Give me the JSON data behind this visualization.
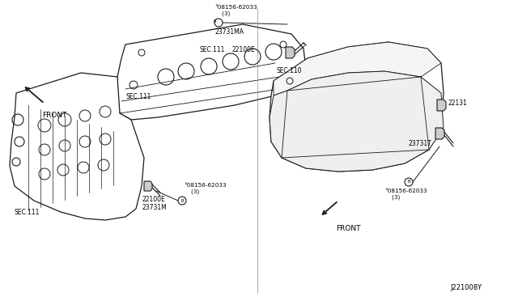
{
  "bg_color": "#ffffff",
  "line_color": "#1a1a1a",
  "text_color": "#000000",
  "fig_width": 6.4,
  "fig_height": 3.72,
  "dpi": 100,
  "labels": {
    "bolt_top": "°08156-62033\n    (3)",
    "bolt_bottom": "°08156-62033\n    (3)",
    "bolt_right": "°08156-62033\n    (3)",
    "part_22100E_top": "22100E",
    "part_22100E_bottom": "22100E",
    "part_23731MA": "23731MA",
    "part_23731M": "23731M",
    "part_23731T": "23731T",
    "part_22131": "22131",
    "sec111_top": "SEC.111",
    "sec111_bottom": "SEC.111",
    "sec110": "SEC.110",
    "front_left": "FRONT",
    "front_right": "FRONT",
    "diagram_id": "J221008Y"
  },
  "lw": 0.9
}
